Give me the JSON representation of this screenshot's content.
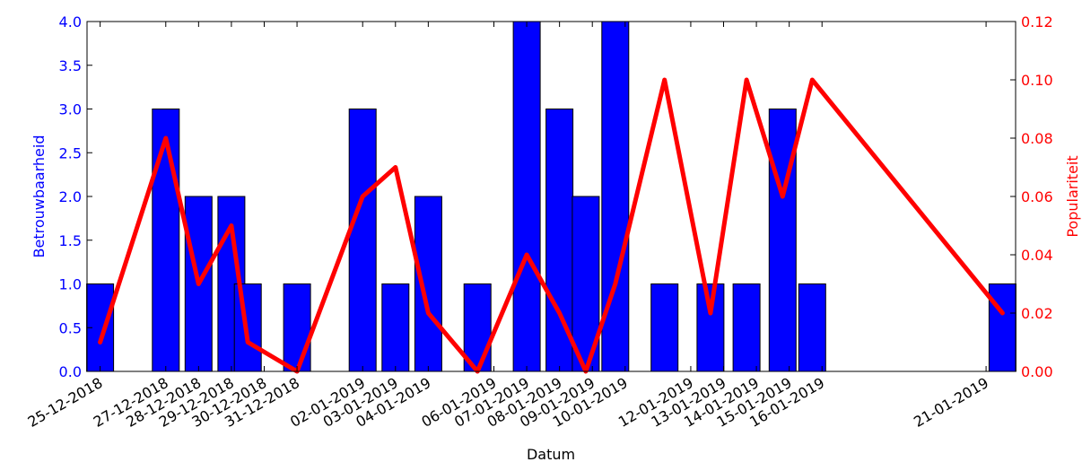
{
  "chart_data": {
    "type": "bar",
    "title": "",
    "xlabel": "Datum",
    "ylabel": "Betrouwbaarheid",
    "y2label": "Populariteit",
    "ylim": [
      0,
      4.0
    ],
    "y2lim": [
      0,
      0.12
    ],
    "y_ticks": [
      "0.0",
      "0.5",
      "1.0",
      "1.5",
      "2.0",
      "2.5",
      "3.0",
      "3.5",
      "4.0"
    ],
    "y2_ticks": [
      "0.00",
      "0.02",
      "0.04",
      "0.06",
      "0.08",
      "0.10",
      "0.12"
    ],
    "x_tick_labels": [
      {
        "label": "25-12-2018",
        "x": 0
      },
      {
        "label": "27-12-2018",
        "x": 2
      },
      {
        "label": "28-12-2018",
        "x": 3
      },
      {
        "label": "29-12-2018",
        "x": 4
      },
      {
        "label": "30-12-2018",
        "x": 5
      },
      {
        "label": "31-12-2018",
        "x": 6
      },
      {
        "label": "02-01-2019",
        "x": 8
      },
      {
        "label": "03-01-2019",
        "x": 9
      },
      {
        "label": "04-01-2019",
        "x": 10
      },
      {
        "label": "06-01-2019",
        "x": 12
      },
      {
        "label": "07-01-2019",
        "x": 13
      },
      {
        "label": "08-01-2019",
        "x": 14
      },
      {
        "label": "09-01-2019",
        "x": 15
      },
      {
        "label": "10-01-2019",
        "x": 16
      },
      {
        "label": "12-01-2019",
        "x": 18
      },
      {
        "label": "13-01-2019",
        "x": 19
      },
      {
        "label": "14-01-2019",
        "x": 20
      },
      {
        "label": "15-01-2019",
        "x": 21
      },
      {
        "label": "16-01-2019",
        "x": 22
      },
      {
        "label": "21-01-2019",
        "x": 27
      }
    ],
    "bars": [
      {
        "x": 0.0,
        "value": 1
      },
      {
        "x": 2.0,
        "value": 3
      },
      {
        "x": 3.0,
        "value": 2
      },
      {
        "x": 4.0,
        "value": 2
      },
      {
        "x": 4.5,
        "value": 1
      },
      {
        "x": 6.0,
        "value": 1
      },
      {
        "x": 8.0,
        "value": 3
      },
      {
        "x": 9.0,
        "value": 1
      },
      {
        "x": 10.0,
        "value": 2
      },
      {
        "x": 11.5,
        "value": 1
      },
      {
        "x": 13.0,
        "value": 4
      },
      {
        "x": 14.0,
        "value": 3
      },
      {
        "x": 14.8,
        "value": 2
      },
      {
        "x": 15.7,
        "value": 4
      },
      {
        "x": 17.2,
        "value": 1
      },
      {
        "x": 18.6,
        "value": 1
      },
      {
        "x": 19.7,
        "value": 1
      },
      {
        "x": 20.8,
        "value": 3
      },
      {
        "x": 21.7,
        "value": 1
      },
      {
        "x": 27.5,
        "value": 1
      }
    ],
    "line": {
      "points": [
        {
          "x": 0,
          "y": 0.01
        },
        {
          "x": 2,
          "y": 0.08
        },
        {
          "x": 3,
          "y": 0.03
        },
        {
          "x": 4,
          "y": 0.05
        },
        {
          "x": 4.5,
          "y": 0.01
        },
        {
          "x": 6,
          "y": 0.0
        },
        {
          "x": 8,
          "y": 0.06
        },
        {
          "x": 9,
          "y": 0.07
        },
        {
          "x": 10,
          "y": 0.02
        },
        {
          "x": 11.5,
          "y": 0.0
        },
        {
          "x": 13,
          "y": 0.04
        },
        {
          "x": 14,
          "y": 0.02
        },
        {
          "x": 14.8,
          "y": 0.0
        },
        {
          "x": 15.7,
          "y": 0.03
        },
        {
          "x": 17.2,
          "y": 0.1
        },
        {
          "x": 18.6,
          "y": 0.02
        },
        {
          "x": 19.7,
          "y": 0.1
        },
        {
          "x": 20.8,
          "y": 0.06
        },
        {
          "x": 21.7,
          "y": 0.1
        },
        {
          "x": 27.5,
          "y": 0.02
        }
      ]
    },
    "x_range": [
      -0.4,
      27.9
    ],
    "grid": false,
    "colors": {
      "bars": "#0000ff",
      "line": "#ff0000",
      "left_axis": "#0000ff",
      "right_axis": "#ff0000"
    }
  }
}
